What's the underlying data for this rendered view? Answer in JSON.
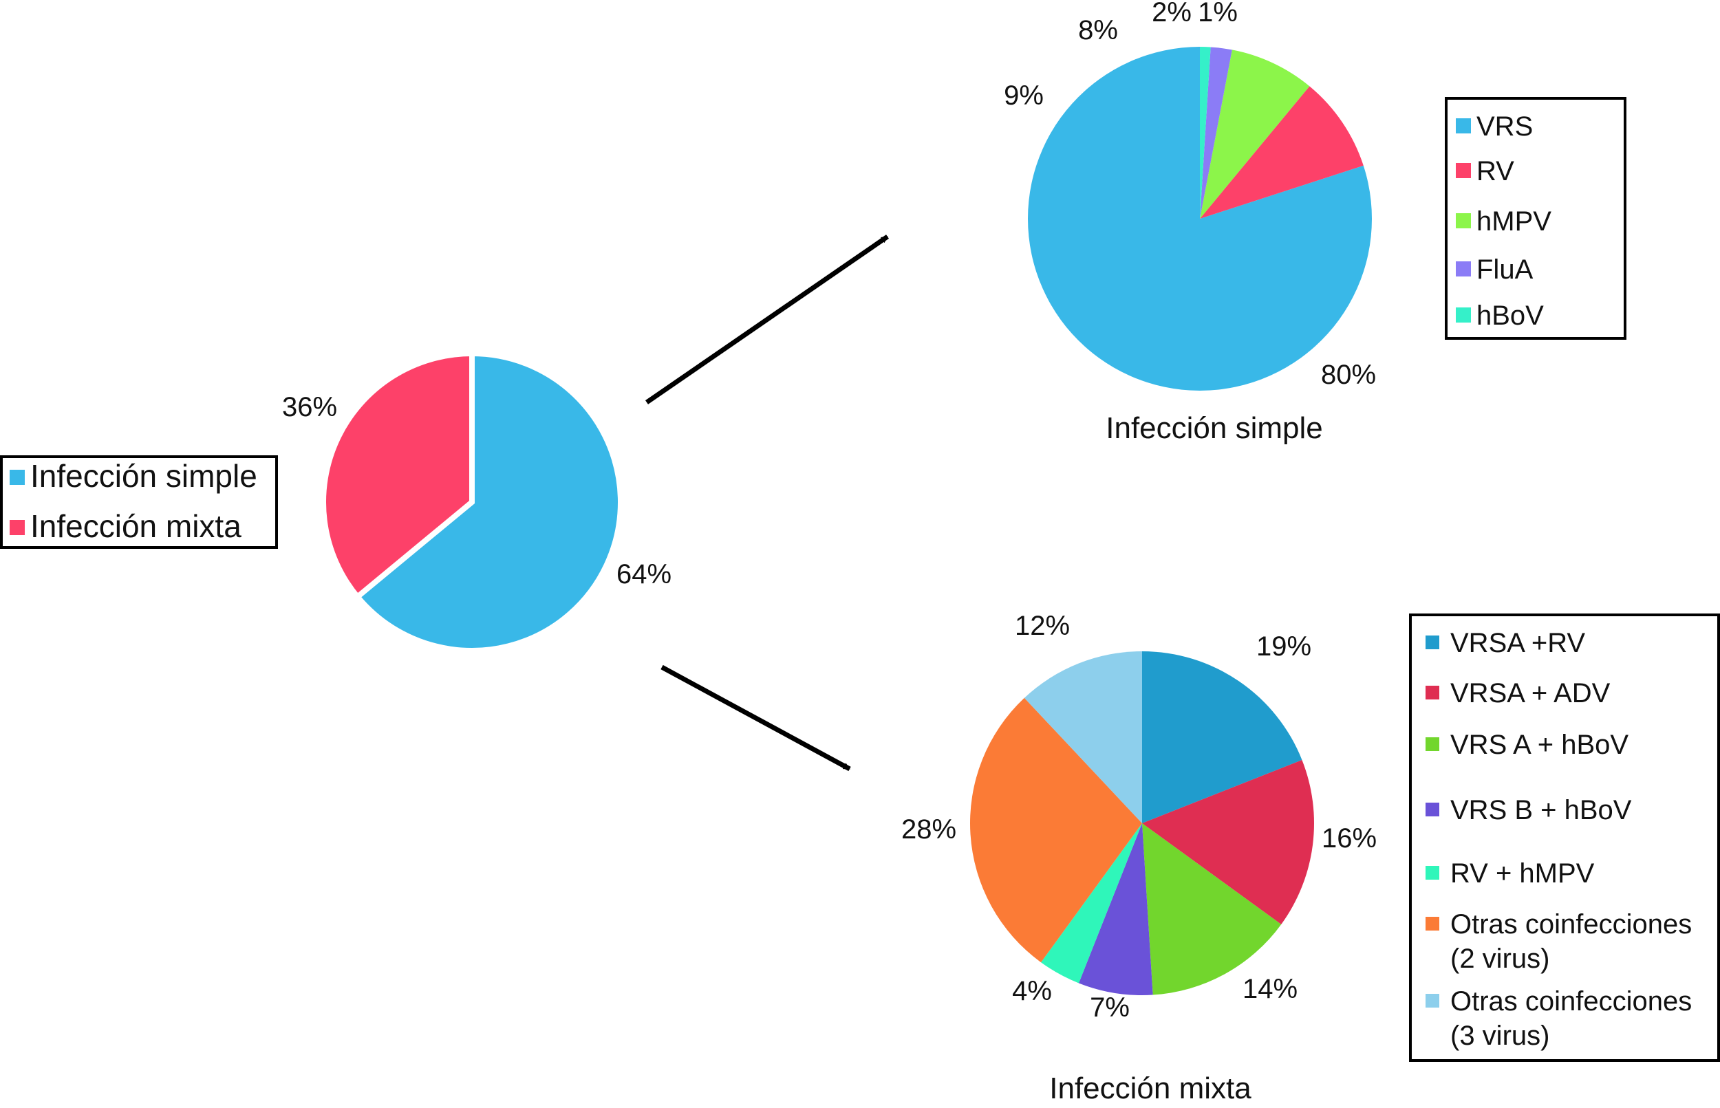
{
  "chart_data": [
    {
      "type": "pie",
      "categories": [
        "Infección simple",
        "Infección mixta"
      ],
      "values": [
        64,
        36
      ],
      "labels": [
        "64%",
        "36%"
      ],
      "colors": [
        "#39b8e8",
        "#fd4169"
      ],
      "title": "",
      "legend": [
        "Infección simple",
        "Infección mixta"
      ],
      "legend_position": "left"
    },
    {
      "type": "pie",
      "title": "Infección simple",
      "categories": [
        "VRS",
        "RV",
        "hMPV",
        "FluA",
        "hBoV"
      ],
      "values": [
        80,
        9,
        8,
        2,
        1
      ],
      "labels": [
        "80%",
        "9%",
        "8%",
        "2%",
        "1%"
      ],
      "colors": [
        "#39b8e8",
        "#fd4169",
        "#8cf54a",
        "#8b7cf6",
        "#35f0c9"
      ],
      "legend": [
        "VRS",
        "RV",
        "hMPV",
        "FluA",
        "hBoV"
      ],
      "legend_position": "right"
    },
    {
      "type": "pie",
      "title": "Infección mixta",
      "categories": [
        "VRSA +RV",
        "VRSA + ADV",
        "VRS A + hBoV",
        "VRS B + hBoV",
        "RV + hMPV",
        "Otras coinfecciones (2 virus)",
        "Otras coinfecciones (3 virus)"
      ],
      "values": [
        19,
        16,
        14,
        7,
        4,
        28,
        12
      ],
      "labels": [
        "19%",
        "16%",
        "14%",
        "7%",
        "4%",
        "28%",
        "12%"
      ],
      "colors": [
        "#209ccd",
        "#df2e52",
        "#72d62d",
        "#6a52d8",
        "#2ff6ba",
        "#fb7b36",
        "#8dcfec"
      ],
      "legend": [
        [
          "VRSA +RV"
        ],
        [
          "VRSA + ADV"
        ],
        [
          "VRS A + hBoV"
        ],
        [
          "VRS B + hBoV"
        ],
        [
          "RV + hMPV"
        ],
        [
          "Otras coinfecciones",
          "(2 virus)"
        ],
        [
          "Otras coinfecciones",
          "(3 virus)"
        ]
      ],
      "legend_position": "right"
    }
  ]
}
